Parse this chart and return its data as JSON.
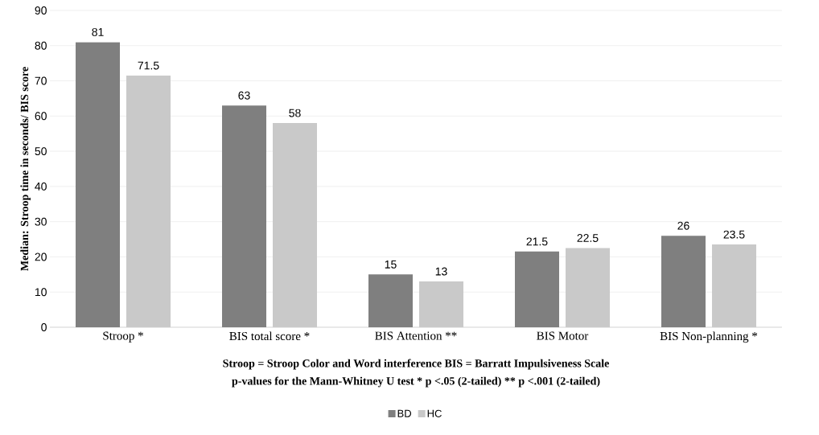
{
  "chart_data": {
    "type": "bar",
    "ylabel": "Median: Stroop time in seconds/ BIS score",
    "categories": [
      "Stroop *",
      "BIS total score *",
      "BIS Attention **",
      "BIS Motor",
      "BIS Non-planning *"
    ],
    "series": [
      {
        "name": "BD",
        "color": "#7f7f7f",
        "values": [
          81,
          63,
          15,
          21.5,
          26
        ]
      },
      {
        "name": "HC",
        "color": "#c9c9c9",
        "values": [
          71.5,
          58,
          13,
          22.5,
          23.5
        ]
      }
    ],
    "ylim": [
      0,
      90
    ],
    "yticks": [
      0,
      10,
      20,
      30,
      40,
      50,
      60,
      70,
      80,
      90
    ],
    "grid": "y",
    "data_labels": true,
    "legend": "bottom",
    "annotations": [
      "Stroop = Stroop Color and Word interference BIS = Barratt Impulsiveness Scale",
      "p-values for the Mann-Whitney U test * p <.05 (2-tailed) ** p <.001 (2-tailed)"
    ]
  }
}
